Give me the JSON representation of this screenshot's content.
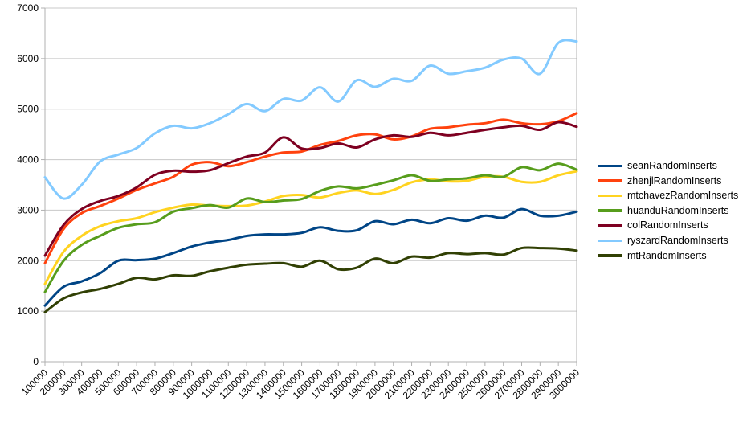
{
  "chart_data": {
    "type": "line",
    "title": "",
    "xlabel": "",
    "ylabel": "",
    "ylim": [
      0,
      7000
    ],
    "y_step": 1000,
    "grid": true,
    "smooth": true,
    "legend_position": "right",
    "x_axis_rotation_deg": -45,
    "y_tick_labels": [
      "0",
      "1000",
      "2000",
      "3000",
      "4000",
      "5000",
      "6000",
      "7000"
    ],
    "x_tick_labels": [
      "100000",
      "200000",
      "300000",
      "400000",
      "500000",
      "600000",
      "700000",
      "800000",
      "900000",
      "1000000",
      "1100000",
      "1200000",
      "1300000",
      "1400000",
      "1500000",
      "1600000",
      "1700000",
      "1800000",
      "1900000",
      "2000000",
      "2100000",
      "2200000",
      "2300000",
      "2400000",
      "2500000",
      "2600000",
      "2700000",
      "2800000",
      "2900000",
      "3000000"
    ],
    "series": [
      {
        "name": "seanRandomInserts",
        "color": "#004586",
        "values": [
          1110,
          1480,
          1590,
          1750,
          2000,
          2010,
          2040,
          2150,
          2280,
          2360,
          2410,
          2490,
          2520,
          2520,
          2550,
          2660,
          2590,
          2600,
          2780,
          2720,
          2810,
          2740,
          2840,
          2790,
          2890,
          2850,
          3020,
          2890,
          2890,
          2970
        ]
      },
      {
        "name": "zhenjlRandomInserts",
        "color": "#FF420E",
        "values": [
          1950,
          2620,
          2940,
          3080,
          3230,
          3400,
          3530,
          3660,
          3900,
          3950,
          3870,
          3950,
          4060,
          4140,
          4160,
          4290,
          4370,
          4480,
          4500,
          4400,
          4460,
          4610,
          4640,
          4690,
          4720,
          4790,
          4720,
          4700,
          4760,
          4920
        ]
      },
      {
        "name": "mtchavezRandomInserts",
        "color": "#FFD320",
        "values": [
          1540,
          2170,
          2490,
          2680,
          2780,
          2840,
          2960,
          3050,
          3110,
          3090,
          3080,
          3090,
          3170,
          3280,
          3300,
          3250,
          3340,
          3390,
          3320,
          3400,
          3550,
          3610,
          3570,
          3580,
          3660,
          3660,
          3560,
          3560,
          3690,
          3770
        ]
      },
      {
        "name": "huanduRandomInserts",
        "color": "#579D1C",
        "values": [
          1380,
          1990,
          2310,
          2490,
          2650,
          2720,
          2760,
          2970,
          3040,
          3100,
          3050,
          3230,
          3160,
          3190,
          3220,
          3380,
          3470,
          3430,
          3500,
          3590,
          3690,
          3580,
          3610,
          3630,
          3690,
          3660,
          3850,
          3790,
          3920,
          3800
        ]
      },
      {
        "name": "colRandomInserts",
        "color": "#7E0021",
        "values": [
          2100,
          2700,
          3020,
          3180,
          3280,
          3450,
          3700,
          3780,
          3760,
          3790,
          3930,
          4060,
          4140,
          4440,
          4220,
          4230,
          4320,
          4240,
          4400,
          4480,
          4450,
          4530,
          4480,
          4530,
          4590,
          4640,
          4670,
          4590,
          4740,
          4650
        ]
      },
      {
        "name": "ryszardRandomInserts",
        "color": "#83CAFF",
        "values": [
          3650,
          3230,
          3500,
          3960,
          4100,
          4230,
          4520,
          4670,
          4620,
          4720,
          4900,
          5100,
          4960,
          5200,
          5170,
          5430,
          5150,
          5570,
          5440,
          5600,
          5560,
          5860,
          5700,
          5750,
          5820,
          5980,
          6000,
          5700,
          6310,
          6340
        ]
      },
      {
        "name": "mtRandomInserts",
        "color": "#314004",
        "values": [
          980,
          1250,
          1370,
          1440,
          1540,
          1660,
          1630,
          1710,
          1700,
          1790,
          1860,
          1920,
          1940,
          1950,
          1880,
          2000,
          1830,
          1860,
          2040,
          1950,
          2080,
          2060,
          2150,
          2130,
          2150,
          2120,
          2250,
          2250,
          2240,
          2200
        ]
      }
    ]
  },
  "styles": {
    "background": "#ffffff",
    "grid_color": "#c8c8c8",
    "axis_color": "#b0b0b0",
    "text_color": "#000000"
  }
}
